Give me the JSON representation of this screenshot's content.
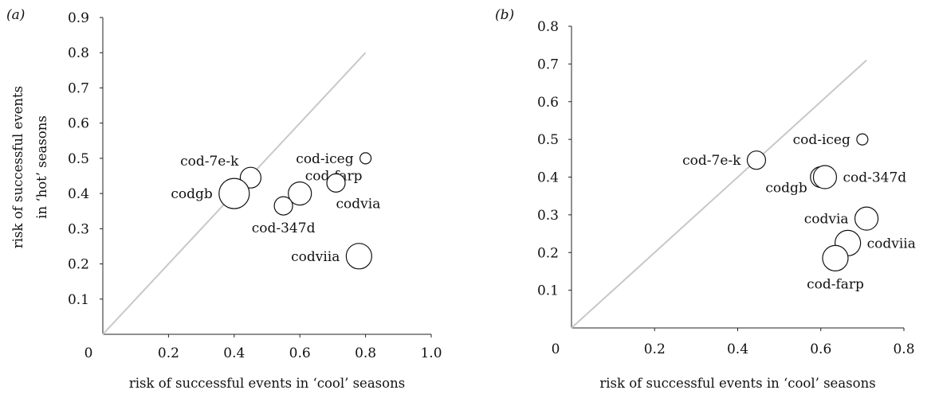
{
  "chart_data": [
    {
      "type": "scatter",
      "panel_label": "(a)",
      "xlabel": "risk of successful events in ‘cool’ seasons",
      "ylabel": [
        "risk of successful events",
        "in ‘hot’ seasons"
      ],
      "xlim": [
        0,
        1.0
      ],
      "ylim": [
        0,
        0.9
      ],
      "xticks": [
        0.2,
        0.4,
        0.6,
        0.8,
        1.0
      ],
      "xtick_labels": [
        "0.2",
        "0.4",
        "0.6",
        "0.8",
        "1.0"
      ],
      "yticks": [
        0.1,
        0.2,
        0.3,
        0.4,
        0.5,
        0.6,
        0.7,
        0.8,
        0.9
      ],
      "ytick_labels": [
        "0.1",
        "0.2",
        "0.3",
        "0.4",
        "0.5",
        "0.6",
        "0.7",
        "0.8",
        "0.9"
      ],
      "origin_label": "0",
      "reference_line": {
        "x": [
          0,
          0.8
        ],
        "y": [
          0,
          0.8
        ]
      },
      "points": [
        {
          "label": "cod-7e-k",
          "x": 0.45,
          "y": 0.445,
          "size": 3.0,
          "label_pos": "upper-left"
        },
        {
          "label": "cod-farp",
          "x": 0.6,
          "y": 0.4,
          "size": 3.5,
          "label_pos": "upper-right"
        },
        {
          "label": "codgb",
          "x": 0.4,
          "y": 0.4,
          "size": 5.0,
          "label_pos": "left"
        },
        {
          "label": "cod-347d",
          "x": 0.55,
          "y": 0.365,
          "size": 2.5,
          "label_pos": "below"
        },
        {
          "label": "cod-iceg",
          "x": 0.8,
          "y": 0.5,
          "size": 1.0,
          "label_pos": "left"
        },
        {
          "label": "codvia",
          "x": 0.71,
          "y": 0.43,
          "size": 2.5,
          "label_pos": "below-right"
        },
        {
          "label": "codviia",
          "x": 0.78,
          "y": 0.222,
          "size": 4.0,
          "label_pos": "left"
        }
      ]
    },
    {
      "type": "scatter",
      "panel_label": "(b)",
      "xlabel": "risk of successful events in ‘cool’ seasons",
      "ylabel": [],
      "xlim": [
        0,
        0.8
      ],
      "ylim": [
        0,
        0.8
      ],
      "xticks": [
        0.2,
        0.4,
        0.6,
        0.8
      ],
      "xtick_labels": [
        "0.2",
        "0.4",
        "0.6",
        "0.8"
      ],
      "yticks": [
        0.1,
        0.2,
        0.3,
        0.4,
        0.5,
        0.6,
        0.7,
        0.8
      ],
      "ytick_labels": [
        "0.1",
        "0.2",
        "0.3",
        "0.4",
        "0.5",
        "0.6",
        "0.7",
        "0.8"
      ],
      "origin_label": "0",
      "reference_line": {
        "x": [
          0,
          0.71
        ],
        "y": [
          0,
          0.71
        ]
      },
      "points": [
        {
          "label": "cod-iceg",
          "x": 0.7,
          "y": 0.5,
          "size": 1.0,
          "label_pos": "left"
        },
        {
          "label": "cod-7e-k",
          "x": 0.445,
          "y": 0.445,
          "size": 2.5,
          "label_pos": "left"
        },
        {
          "label": "codgb",
          "x": 0.6,
          "y": 0.4,
          "size": 3.0,
          "label_pos": "below-left"
        },
        {
          "label": "cod-347d",
          "x": 0.61,
          "y": 0.4,
          "size": 3.5,
          "label_pos": "right"
        },
        {
          "label": "codvia",
          "x": 0.71,
          "y": 0.29,
          "size": 3.5,
          "label_pos": "left"
        },
        {
          "label": "codviia",
          "x": 0.665,
          "y": 0.225,
          "size": 4.0,
          "label_pos": "right"
        },
        {
          "label": "cod-farp",
          "x": 0.635,
          "y": 0.185,
          "size": 4.0,
          "label_pos": "below"
        }
      ]
    }
  ]
}
